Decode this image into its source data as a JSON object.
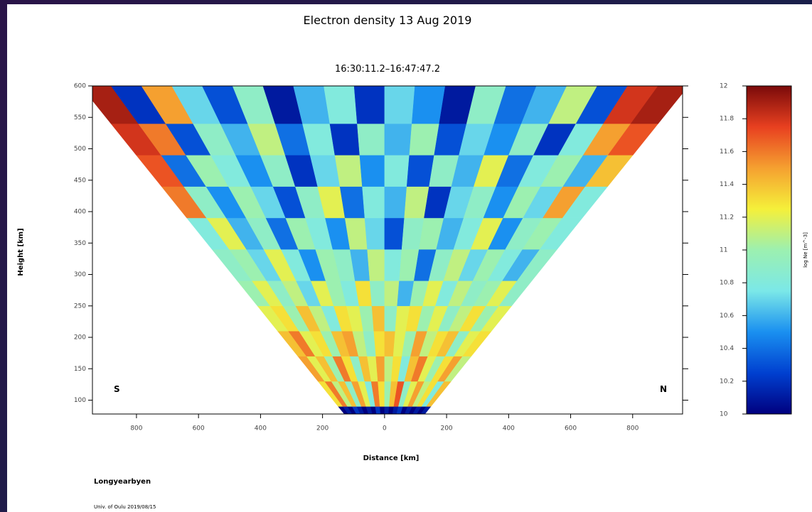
{
  "chart_data": {
    "type": "fan-heatmap",
    "title": "Electron density   13 Aug 2019",
    "subtitle": "16:30:11.2–16:47:47.2",
    "xlabel": "Distance [km]",
    "ylabel": "Height [km]",
    "annotations": [
      "S",
      "N",
      "Longyearbyen",
      "Univ. of Oulu 2019/08/15"
    ],
    "xlim": [
      -942,
      961
    ],
    "xticks": [
      {
        "value": -800,
        "label": "800"
      },
      {
        "value": -600,
        "label": "600"
      },
      {
        "value": -400,
        "label": "400"
      },
      {
        "value": -200,
        "label": "200"
      },
      0,
      200,
      400,
      600,
      800
    ],
    "ylim": [
      78,
      600
    ],
    "yticks": [
      100,
      150,
      200,
      250,
      300,
      350,
      400,
      450,
      500,
      550,
      600
    ],
    "y_bins": [
      78,
      90,
      130,
      170,
      210,
      250,
      290,
      340,
      390,
      440,
      490,
      540,
      600
    ],
    "z": [
      [
        10.0,
        10.1,
        10.0,
        10.2,
        10.1,
        10.0,
        10.1,
        10.0,
        10.2,
        10.0,
        10.1,
        10.0,
        10.1,
        10.2,
        10.0,
        10.1,
        10.0,
        10.1,
        10.0,
        10.1
      ],
      [
        11.3,
        11.6,
        11.1,
        11.4,
        10.9,
        11.5,
        11.2,
        10.8,
        11.6,
        11.3,
        11.0,
        11.4,
        11.7,
        10.9,
        11.2,
        11.5,
        11.1,
        11.3,
        10.8,
        11.4
      ],
      [
        11.5,
        11.2,
        11.4,
        11.0,
        11.6,
        11.3,
        10.9,
        11.4,
        11.2,
        11.5,
        11.1,
        11.3,
        10.8,
        11.4,
        11.6,
        11.2,
        11.0,
        11.3,
        11.5,
        11.1
      ],
      [
        11.4,
        11.6,
        11.2,
        11.3,
        11.0,
        11.4,
        11.5,
        11.1,
        10.9,
        11.3,
        11.4,
        11.2,
        11.0,
        11.5,
        11.1,
        11.3,
        11.4,
        10.9,
        11.2,
        11.3
      ],
      [
        11.2,
        11.3,
        11.0,
        11.4,
        11.1,
        10.8,
        11.3,
        11.2,
        11.0,
        11.4,
        10.9,
        11.2,
        11.3,
        11.0,
        11.2,
        10.9,
        11.1,
        11.3,
        11.0,
        11.2
      ],
      [
        11.0,
        11.2,
        10.9,
        11.1,
        10.7,
        11.2,
        11.0,
        10.8,
        11.3,
        10.9,
        11.1,
        10.6,
        11.0,
        11.2,
        10.8,
        11.1,
        10.9,
        11.0,
        11.2,
        10.9
      ],
      [
        10.9,
        11.0,
        10.7,
        11.2,
        10.8,
        10.5,
        11.0,
        10.9,
        10.6,
        11.1,
        10.8,
        11.0,
        10.4,
        10.9,
        11.1,
        10.7,
        11.0,
        10.8,
        10.6,
        10.9
      ],
      [
        10.8,
        11.2,
        10.6,
        10.9,
        10.4,
        11.0,
        10.8,
        10.5,
        11.1,
        10.7,
        10.3,
        10.9,
        11.0,
        10.6,
        10.8,
        11.2,
        10.5,
        10.9,
        11.0,
        10.8
      ],
      [
        11.6,
        10.9,
        10.5,
        11.0,
        10.7,
        10.3,
        10.9,
        11.2,
        10.4,
        10.8,
        10.6,
        11.1,
        10.2,
        10.7,
        10.9,
        10.5,
        11.0,
        10.7,
        11.5,
        10.8
      ],
      [
        11.7,
        10.4,
        11.0,
        10.8,
        10.5,
        10.9,
        10.2,
        10.7,
        11.1,
        10.5,
        10.8,
        10.3,
        10.9,
        10.6,
        11.2,
        10.4,
        10.8,
        11.0,
        10.6,
        11.4
      ],
      [
        11.8,
        11.6,
        10.3,
        10.9,
        10.6,
        11.1,
        10.4,
        10.8,
        10.2,
        10.9,
        10.6,
        11.0,
        10.3,
        10.7,
        10.5,
        10.9,
        10.2,
        10.8,
        11.5,
        11.7
      ],
      [
        11.9,
        10.2,
        11.5,
        10.7,
        10.3,
        10.9,
        10.1,
        10.6,
        10.8,
        10.2,
        10.7,
        10.5,
        10.1,
        10.9,
        10.4,
        10.6,
        11.1,
        10.3,
        11.8,
        11.9
      ]
    ],
    "colorbar": {
      "label": "log Ne [m^-3]",
      "lim": [
        10,
        12
      ],
      "ticks": [
        10,
        10.2,
        10.4,
        10.6,
        10.8,
        11,
        11.2,
        11.4,
        11.6,
        11.8,
        12
      ]
    },
    "colormap": [
      "#00007f",
      "#0040d0",
      "#1a90f0",
      "#7be8e8",
      "#9cf0b0",
      "#f5f03a",
      "#f5a030",
      "#e84020",
      "#7a0a0a"
    ]
  }
}
